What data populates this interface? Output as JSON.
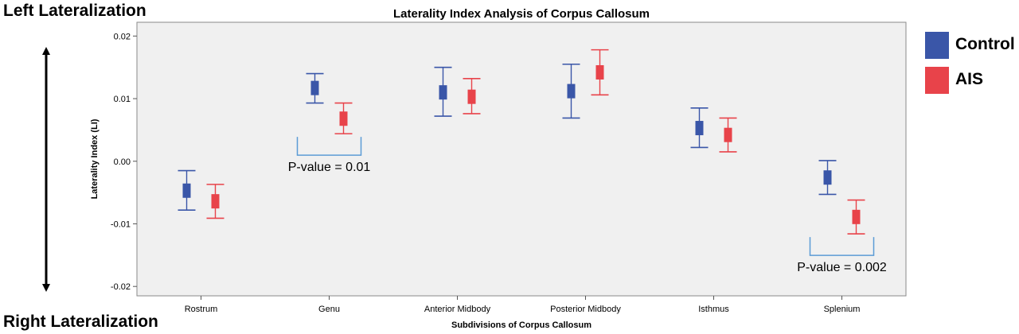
{
  "chart_data": {
    "type": "errorbar",
    "title": "Laterality Index Analysis of Corpus Callosum",
    "xlabel": "Subdivisions of Corpus Callosum",
    "ylabel": "Laterality Index (LI)",
    "ylim": [
      -0.0215,
      0.0222
    ],
    "yticks": [
      0.02,
      0.01,
      0.0,
      -0.01,
      -0.02
    ],
    "ytick_labels": [
      "0.02",
      "0.01",
      "0.00",
      "-0.01",
      "-0.02"
    ],
    "grid": false,
    "legend_position": "right",
    "categories": [
      "Rostrum",
      "Genu",
      "Anterior Midbody",
      "Posterior Midbody",
      "Isthmus",
      "Splenium"
    ],
    "series": [
      {
        "name": "Control",
        "color": "#3a56a8",
        "mean": [
          -0.0047,
          0.0117,
          0.011,
          0.0112,
          0.0053,
          -0.0026
        ],
        "upper": [
          -0.0015,
          0.014,
          0.015,
          0.0155,
          0.0085,
          0.0001
        ],
        "lower": [
          -0.0078,
          0.0093,
          0.0072,
          0.0069,
          0.0022,
          -0.0053
        ]
      },
      {
        "name": "AIS",
        "color": "#e8434a",
        "mean": [
          -0.0064,
          0.0068,
          0.0103,
          0.0142,
          0.0042,
          -0.0089
        ],
        "upper": [
          -0.0037,
          0.0093,
          0.0132,
          0.0178,
          0.0069,
          -0.0062
        ],
        "lower": [
          -0.0091,
          0.0044,
          0.0076,
          0.0106,
          0.0015,
          -0.0116
        ]
      }
    ],
    "annotations": [
      {
        "text": "P-value = 0.01",
        "category": "Genu"
      },
      {
        "text": "P-value = 0.002",
        "category": "Splenium"
      }
    ]
  },
  "side_labels": {
    "top": "Left Lateralization",
    "bottom": "Right Lateralization"
  }
}
